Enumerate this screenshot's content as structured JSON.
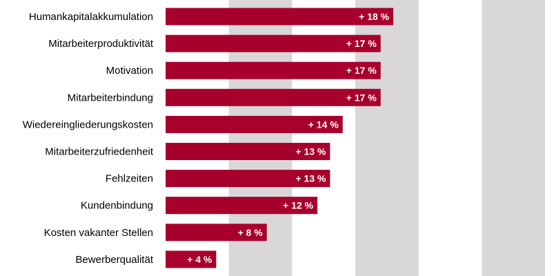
{
  "chart_data": {
    "type": "bar",
    "orientation": "horizontal",
    "categories": [
      "Humankapitalakkumulation",
      "Mitarbeiterproduktivität",
      "Motivation",
      "Mitarbeiterbindung",
      "Wiedereingliederungskosten",
      "Mitarbeiterzufriedenheit",
      "Fehlzeiten",
      "Kundenbindung",
      "Kosten vakanter Stellen",
      "Bewerberqualität"
    ],
    "values": [
      18,
      17,
      17,
      17,
      14,
      13,
      13,
      12,
      8,
      4
    ],
    "value_labels": [
      "+ 18 %",
      "+ 17 %",
      "+ 17 %",
      "+ 17 %",
      "+ 14 %",
      "+ 13 %",
      "+ 13 %",
      "+ 12 %",
      "+ 8 %",
      "+ 4 %"
    ],
    "xlim": [
      0,
      30
    ],
    "title": "",
    "xlabel": "",
    "ylabel": "",
    "grid": "alternating vertical bands",
    "legend": "none",
    "colors": {
      "bar": "#a8002d",
      "band": "#d9d7d8",
      "background": "#ffffff",
      "category_text": "#000000",
      "value_text": "#ffffff"
    }
  }
}
